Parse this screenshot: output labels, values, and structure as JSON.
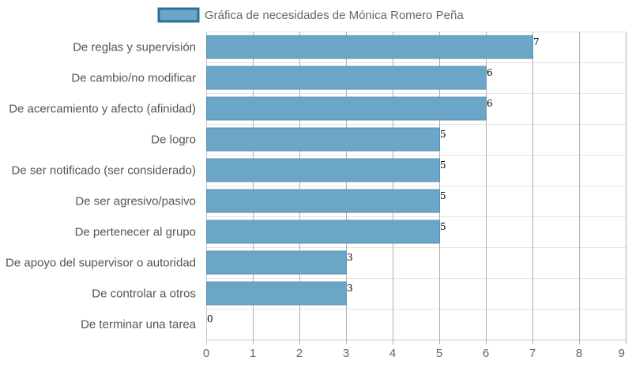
{
  "chart_data": {
    "type": "bar",
    "orientation": "horizontal",
    "categories": [
      "De reglas y supervisión",
      "De cambio/no modificar",
      "De acercamiento y afecto (afinidad)",
      "De logro",
      "De ser notificado (ser considerado)",
      "De ser agresivo/pasivo",
      "De pertenecer al grupo",
      "De apoyo del supervisor o autoridad",
      "De controlar a otros",
      "De terminar una tarea"
    ],
    "series": [
      {
        "name": "Gráfica de necesidades de Mónica Romero Peña",
        "values": [
          7,
          6,
          6,
          5,
          5,
          5,
          5,
          3,
          3,
          0
        ]
      }
    ],
    "xlim": [
      0,
      9
    ],
    "xticks": [
      0,
      1,
      2,
      3,
      4,
      5,
      6,
      7,
      8,
      9
    ],
    "grid": true,
    "legend_position": "top",
    "bar_color": "#6ca6c6",
    "bar_border_color": "#5a93b5",
    "legend_border_color": "#2e6f99",
    "grid_color": "#e5e5e5",
    "vgrid_color": "#b0b0b0",
    "axis_color": "#c8c8c8"
  }
}
